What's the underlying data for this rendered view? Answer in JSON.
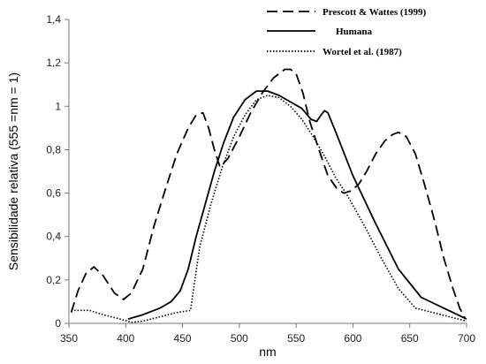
{
  "chart_data": {
    "type": "line",
    "xlabel": "nm",
    "ylabel": "Sensibilidade relativa (555 =nm = 1)",
    "xlim": [
      350,
      700
    ],
    "ylim": [
      0,
      1.4
    ],
    "x_ticks": [
      {
        "value": 350,
        "label": "350"
      },
      {
        "value": 400,
        "label": "400"
      },
      {
        "value": 450,
        "label": "450"
      },
      {
        "value": 500,
        "label": "500"
      },
      {
        "value": 550,
        "label": "550"
      },
      {
        "value": 600,
        "label": "600"
      },
      {
        "value": 650,
        "label": "650"
      },
      {
        "value": 700,
        "label": "700"
      }
    ],
    "y_ticks": [
      {
        "value": 0,
        "label": "0"
      },
      {
        "value": 0.2,
        "label": "0,2"
      },
      {
        "value": 0.4,
        "label": "0,4"
      },
      {
        "value": 0.6,
        "label": "0,6"
      },
      {
        "value": 0.8,
        "label": "0,8"
      },
      {
        "value": 1.0,
        "label": "1"
      },
      {
        "value": 1.2,
        "label": "1,2"
      },
      {
        "value": 1.4,
        "label": "1,4"
      }
    ],
    "grid": false,
    "legend_position": "top-right",
    "series": [
      {
        "name": "Prescott & Wattes (1999)",
        "style": "dashed",
        "color": "#000000",
        "points": [
          [
            352,
            0.05
          ],
          [
            358,
            0.15
          ],
          [
            365,
            0.23
          ],
          [
            372,
            0.26
          ],
          [
            380,
            0.22
          ],
          [
            390,
            0.14
          ],
          [
            398,
            0.11
          ],
          [
            405,
            0.14
          ],
          [
            415,
            0.25
          ],
          [
            425,
            0.45
          ],
          [
            435,
            0.62
          ],
          [
            445,
            0.78
          ],
          [
            455,
            0.9
          ],
          [
            462,
            0.96
          ],
          [
            468,
            0.97
          ],
          [
            473,
            0.9
          ],
          [
            478,
            0.8
          ],
          [
            483,
            0.72
          ],
          [
            490,
            0.76
          ],
          [
            500,
            0.86
          ],
          [
            510,
            0.97
          ],
          [
            520,
            1.06
          ],
          [
            530,
            1.13
          ],
          [
            540,
            1.17
          ],
          [
            545,
            1.17
          ],
          [
            550,
            1.15
          ],
          [
            556,
            1.06
          ],
          [
            562,
            0.93
          ],
          [
            570,
            0.8
          ],
          [
            578,
            0.68
          ],
          [
            586,
            0.62
          ],
          [
            592,
            0.6
          ],
          [
            598,
            0.61
          ],
          [
            605,
            0.64
          ],
          [
            612,
            0.7
          ],
          [
            620,
            0.78
          ],
          [
            628,
            0.84
          ],
          [
            635,
            0.87
          ],
          [
            640,
            0.88
          ],
          [
            647,
            0.86
          ],
          [
            655,
            0.78
          ],
          [
            663,
            0.64
          ],
          [
            672,
            0.47
          ],
          [
            680,
            0.3
          ],
          [
            688,
            0.16
          ],
          [
            694,
            0.07
          ],
          [
            699,
            0.02
          ]
        ]
      },
      {
        "name": "Humana",
        "style": "solid",
        "color": "#000000",
        "points": [
          [
            402,
            0.02
          ],
          [
            415,
            0.04
          ],
          [
            430,
            0.07
          ],
          [
            440,
            0.1
          ],
          [
            448,
            0.15
          ],
          [
            455,
            0.25
          ],
          [
            462,
            0.4
          ],
          [
            470,
            0.55
          ],
          [
            478,
            0.7
          ],
          [
            486,
            0.83
          ],
          [
            495,
            0.95
          ],
          [
            505,
            1.03
          ],
          [
            515,
            1.07
          ],
          [
            525,
            1.07
          ],
          [
            535,
            1.05
          ],
          [
            545,
            1.02
          ],
          [
            555,
            0.99
          ],
          [
            563,
            0.94
          ],
          [
            568,
            0.93
          ],
          [
            572,
            0.96
          ],
          [
            575,
            0.98
          ],
          [
            578,
            0.97
          ],
          [
            585,
            0.88
          ],
          [
            600,
            0.68
          ],
          [
            620,
            0.46
          ],
          [
            640,
            0.25
          ],
          [
            660,
            0.12
          ],
          [
            680,
            0.07
          ],
          [
            700,
            0.02
          ]
        ]
      },
      {
        "name": "Wortel et al. (1987)",
        "style": "dotted",
        "color": "#000000",
        "points": [
          [
            352,
            0.06
          ],
          [
            368,
            0.06
          ],
          [
            380,
            0.04
          ],
          [
            395,
            0.02
          ],
          [
            405,
            0.005
          ],
          [
            415,
            0.01
          ],
          [
            430,
            0.03
          ],
          [
            445,
            0.05
          ],
          [
            457,
            0.06
          ],
          [
            465,
            0.35
          ],
          [
            475,
            0.55
          ],
          [
            485,
            0.72
          ],
          [
            495,
            0.86
          ],
          [
            505,
            0.96
          ],
          [
            515,
            1.03
          ],
          [
            525,
            1.05
          ],
          [
            535,
            1.04
          ],
          [
            545,
            1.0
          ],
          [
            555,
            0.94
          ],
          [
            565,
            0.86
          ],
          [
            575,
            0.77
          ],
          [
            585,
            0.67
          ],
          [
            595,
            0.59
          ],
          [
            610,
            0.45
          ],
          [
            625,
            0.3
          ],
          [
            640,
            0.16
          ],
          [
            655,
            0.07
          ],
          [
            670,
            0.05
          ],
          [
            685,
            0.03
          ],
          [
            700,
            0.01
          ]
        ]
      }
    ]
  }
}
